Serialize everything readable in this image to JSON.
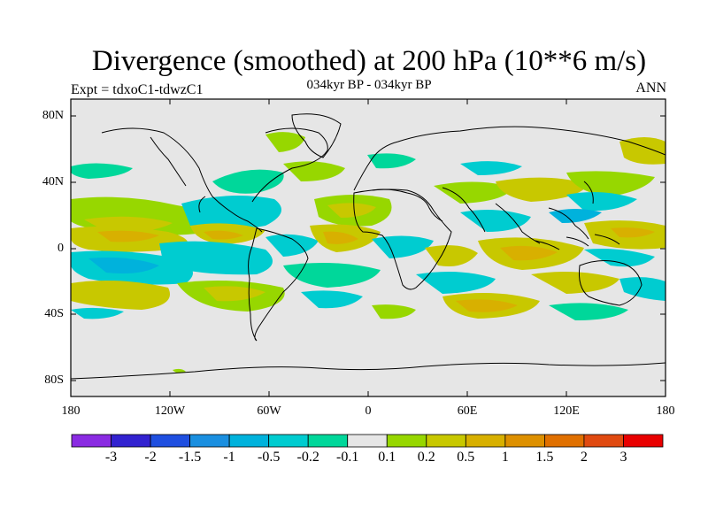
{
  "title": "Divergence (smoothed) at 200 hPa (10**6 m/s)",
  "subtitle": "034kyr BP - 034kyr BP",
  "expt_label": "Expt = tdxoC1-tdwzC1",
  "season": "ANN",
  "lat_labels": [
    "80N",
    "40N",
    "0",
    "40S",
    "80S"
  ],
  "lon_labels": [
    "180",
    "120W",
    "60W",
    "0",
    "60E",
    "120E",
    "180"
  ],
  "colorbar": {
    "colors": [
      "#8a2be2",
      "#3222d0",
      "#1f4fe0",
      "#1a8fe0",
      "#00b2dc",
      "#00ccd0",
      "#00d79a",
      "#e6e6e6",
      "#97d700",
      "#c8c800",
      "#d8b000",
      "#dd9000",
      "#e07000",
      "#e04a10",
      "#e80000"
    ],
    "labels": [
      "-3",
      "-2",
      "-1.5",
      "-1",
      "-0.5",
      "-0.2",
      "-0.1",
      "0.1",
      "0.2",
      "0.5",
      "1",
      "1.5",
      "2",
      "3"
    ]
  },
  "map_colors": {
    "background": "#e6e6e6",
    "pos_low": "#97d700",
    "pos_mid": "#c8c800",
    "pos_high": "#d8b000",
    "pos_max": "#dd9000",
    "neg_low": "#00d79a",
    "neg_mid": "#00ccd0",
    "neg_high": "#00b2dc",
    "coast": "#000000"
  }
}
